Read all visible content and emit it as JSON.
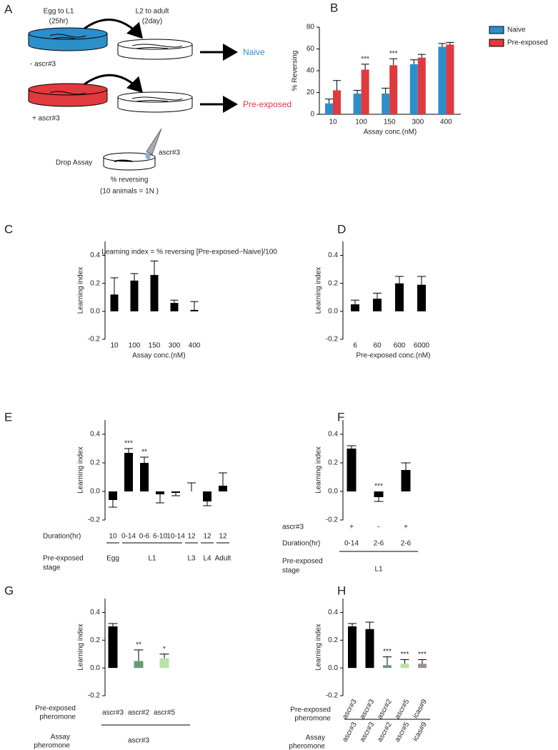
{
  "panel_a": {
    "label": "A",
    "egg_to_l1": [
      "Egg to L1",
      "(25hr)"
    ],
    "l2_to_adult": [
      "L2 to adult",
      "(2day)"
    ],
    "minus": "- ascr#3",
    "plus": "+ ascr#3",
    "naive": "Naive",
    "pre_exposed": "Pre-exposed",
    "drop": "ascr#3",
    "drop_assay": "Drop Assay",
    "reversing": [
      "% reversing",
      "(10 animals = 1N )"
    ]
  },
  "chart_data": [
    {
      "panel": "B",
      "type": "grouped-bar",
      "ylabel": "% Reversing",
      "xlabel": "Assay conc.(nM)",
      "categories": [
        "10",
        "100",
        "150",
        "300",
        "400"
      ],
      "ylim": [
        0,
        80
      ],
      "yticks": [
        0,
        20,
        40,
        60,
        80
      ],
      "legend": "upper right",
      "series": [
        {
          "name": "Naive",
          "color": "#2b8fcb",
          "values": [
            10,
            19,
            19,
            46,
            62
          ],
          "errors": [
            4,
            3,
            5,
            4,
            3
          ]
        },
        {
          "name": "Pre-exposed",
          "color": "#e0393e",
          "values": [
            22,
            41,
            45,
            52,
            64
          ],
          "errors": [
            9,
            5,
            6,
            3,
            2
          ],
          "significance": [
            null,
            "***",
            "***",
            null,
            null
          ]
        }
      ]
    },
    {
      "panel": "C",
      "type": "bar",
      "title": "Learning index = % reversing [Pre-exposed−Naive]/100",
      "ylabel": "Learning index",
      "xlabel": "Assay conc.(nM)",
      "categories": [
        "10",
        "100",
        "150",
        "300",
        "400"
      ],
      "values": [
        0.12,
        0.22,
        0.26,
        0.06,
        0.01
      ],
      "errors": [
        0.12,
        0.05,
        0.1,
        0.02,
        0.06
      ],
      "color": "#000000",
      "ylim": [
        -0.2,
        0.5
      ],
      "yticks": [
        -0.2,
        {
          "value": 0,
          "label": "0.0"
        },
        0.2,
        0.4
      ]
    },
    {
      "panel": "D",
      "type": "bar",
      "ylabel": "Learning index",
      "xlabel": "Pre-exposed conc.(nM)",
      "categories": [
        "6",
        "60",
        "600",
        "6000"
      ],
      "values": [
        0.05,
        0.09,
        0.2,
        0.19
      ],
      "errors": [
        0.03,
        0.04,
        0.05,
        0.06
      ],
      "color": "#000000",
      "ylim": [
        -0.2,
        0.5
      ],
      "yticks": [
        -0.2,
        {
          "value": 0,
          "label": "0.0"
        },
        0.2,
        0.4
      ]
    },
    {
      "panel": "E",
      "type": "bar",
      "ylabel": "Learning index",
      "values": [
        -0.06,
        0.27,
        0.2,
        -0.02,
        -0.01,
        0,
        -0.07,
        0.04
      ],
      "errors": [
        0.05,
        0.03,
        0.04,
        0.06,
        0.02,
        0.06,
        0.03,
        0.09
      ],
      "significance": [
        null,
        "***",
        "**",
        null,
        null,
        null,
        null,
        null
      ],
      "color": "#000000",
      "ylim": [
        -0.2,
        0.5
      ],
      "yticks": [
        -0.2,
        {
          "value": 0,
          "label": "0.0"
        },
        0.2,
        0.4
      ],
      "row_label": "Duration(hr)",
      "group_label": [
        "Pre-exposed",
        "stage"
      ],
      "groups": [
        {
          "label": "Egg",
          "categories": [
            "10"
          ]
        },
        {
          "label": "L1",
          "categories": [
            "0-14",
            "0-6",
            "6-10",
            "10-14"
          ]
        },
        {
          "label": "L3",
          "categories": [
            "12"
          ]
        },
        {
          "label": "L4",
          "categories": [
            "12"
          ]
        },
        {
          "label": "Adult",
          "categories": [
            "12"
          ]
        }
      ]
    },
    {
      "panel": "F",
      "type": "bar",
      "ylabel": "Learning index",
      "values": [
        0.3,
        -0.04,
        0.15
      ],
      "errors": [
        0.02,
        0.03,
        0.05
      ],
      "significance": [
        null,
        "***",
        null
      ],
      "color": "#000000",
      "ylim": [
        -0.2,
        0.5
      ],
      "yticks": [
        -0.2,
        {
          "value": 0,
          "label": "0.0"
        },
        0.2,
        0.4
      ],
      "rows": [
        {
          "label": "ascr#3",
          "cells": [
            "+",
            "-",
            "+"
          ]
        },
        {
          "label": "Duration(hr)",
          "cells": [
            "0-14",
            "2-6",
            "2-6"
          ]
        }
      ],
      "group_label": [
        "Pre-exposed",
        "stage"
      ],
      "group": "L1"
    },
    {
      "panel": "G",
      "type": "bar",
      "ylabel": "Learning index",
      "categories": [
        "ascr#3",
        "ascr#2",
        "ascr#5"
      ],
      "values": [
        0.3,
        0.05,
        0.07
      ],
      "errors": [
        0.02,
        0.08,
        0.03
      ],
      "significance": [
        null,
        "**",
        "*"
      ],
      "colors": [
        "#000000",
        "#6b9a78",
        "#b8e3a3"
      ],
      "ylim": [
        -0.2,
        0.5
      ],
      "yticks": [
        -0.2,
        {
          "value": 0,
          "label": "0.0"
        },
        0.2,
        0.4
      ],
      "category_label": [
        "Pre-exposed",
        "pheromone"
      ],
      "assay_label": [
        "Assay",
        "pheromone"
      ],
      "assay": "ascr#3"
    },
    {
      "panel": "H",
      "type": "bar",
      "ylabel": "Learning index",
      "categories": [
        "ascr#3",
        "ascr#3",
        "ascr#2",
        "ascr#5",
        "icas#9"
      ],
      "values": [
        0.3,
        0.28,
        0.02,
        0.03,
        0.03
      ],
      "errors": [
        0.02,
        0.05,
        0.06,
        0.03,
        0.03
      ],
      "significance": [
        null,
        null,
        "***",
        "***",
        "***"
      ],
      "colors": [
        "#000000",
        "#000000",
        "#6b9a78",
        "#b8e3a3",
        "#9e8c8c"
      ],
      "ylim": [
        -0.2,
        0.5
      ],
      "yticks": [
        -0.2,
        {
          "value": 0,
          "label": "0.0"
        },
        0.2,
        0.4
      ],
      "category_label": [
        "Pre-exposed",
        "pheromone"
      ],
      "assay_label": [
        "Assay",
        "pheromone"
      ],
      "assay": [
        "ascr#3",
        "ascr#3",
        "ascr#2",
        "ascr#5",
        "icas#9"
      ]
    }
  ]
}
